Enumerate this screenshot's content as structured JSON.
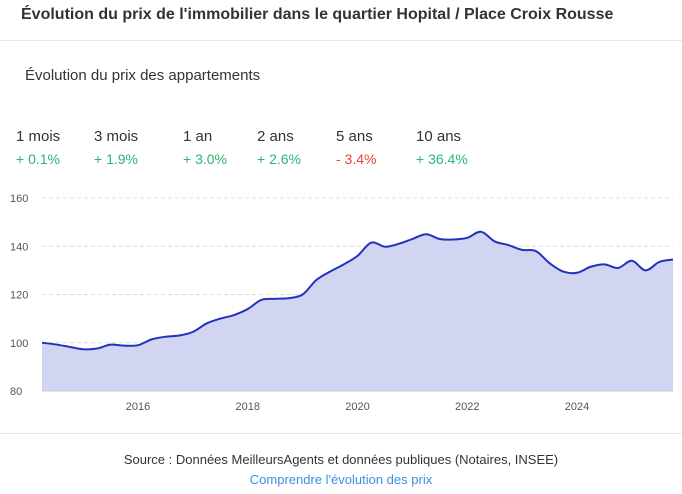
{
  "header": {
    "title": "Évolution du prix de l'immobilier dans le quartier Hopital / Place Croix Rousse"
  },
  "subtitle": "Évolution du prix des appartements",
  "periods": [
    {
      "label": "1 mois",
      "value": "+ 0.1%",
      "trend": "up"
    },
    {
      "label": "3 mois",
      "value": "+ 1.9%",
      "trend": "up"
    },
    {
      "label": "1 an",
      "value": "+ 3.0%",
      "trend": "up"
    },
    {
      "label": "2 ans",
      "value": "+ 2.6%",
      "trend": "up"
    },
    {
      "label": "5 ans",
      "value": "- 3.4%",
      "trend": "down"
    },
    {
      "label": "10 ans",
      "value": "+ 36.4%",
      "trend": "up"
    }
  ],
  "colors": {
    "positive": "#2bb673",
    "negative": "#e0443a",
    "line": "#2233bb",
    "area": "#d1d5f2",
    "link": "#3d8fe0"
  },
  "chart_data": {
    "type": "area",
    "title": "",
    "xlabel": "",
    "ylabel": "",
    "ylim": [
      80,
      160
    ],
    "yticks": [
      80,
      100,
      120,
      140,
      160
    ],
    "xlim": [
      2014.25,
      2025.75
    ],
    "xticks": [
      2016,
      2018,
      2020,
      2022,
      2024
    ],
    "grid": "horizontal dashed",
    "x": [
      2014.25,
      2014.5,
      2014.75,
      2015.0,
      2015.25,
      2015.5,
      2015.75,
      2016.0,
      2016.25,
      2016.5,
      2016.75,
      2017.0,
      2017.25,
      2017.5,
      2017.75,
      2018.0,
      2018.25,
      2018.5,
      2018.75,
      2019.0,
      2019.25,
      2019.5,
      2019.75,
      2020.0,
      2020.25,
      2020.5,
      2020.75,
      2021.0,
      2021.25,
      2021.5,
      2021.75,
      2022.0,
      2022.25,
      2022.5,
      2022.75,
      2023.0,
      2023.25,
      2023.5,
      2023.75,
      2024.0,
      2024.25,
      2024.5,
      2024.75,
      2025.0,
      2025.25,
      2025.5,
      2025.75
    ],
    "series": [
      {
        "values": [
          100.0,
          99.3,
          98.3,
          97.3,
          97.6,
          99.2,
          98.8,
          99.0,
          101.4,
          102.5,
          103.0,
          104.5,
          108.0,
          110.0,
          111.5,
          114.0,
          117.8,
          118.2,
          118.5,
          120.0,
          126.0,
          129.5,
          132.5,
          136.0,
          141.5,
          139.8,
          141.0,
          143.0,
          145.0,
          143.0,
          142.8,
          143.5,
          146.0,
          142.0,
          140.5,
          138.5,
          138.0,
          133.0,
          129.5,
          129.0,
          131.5,
          132.5,
          131.0,
          134.0,
          130.0,
          133.5,
          134.5
        ]
      }
    ]
  },
  "footer": {
    "source": "Source : Données MeilleursAgents et données publiques (Notaires, INSEE)",
    "link": "Comprendre l'évolution des prix"
  }
}
